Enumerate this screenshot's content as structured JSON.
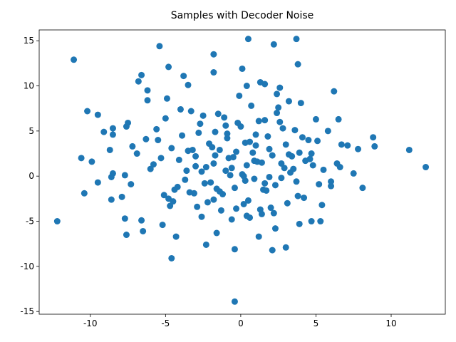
{
  "chart_data": {
    "type": "scatter",
    "title": "Samples with Decoder Noise",
    "color": "#1f77b4",
    "x": [
      -12.2,
      -11.1,
      0.5,
      3.7,
      2.2,
      -5.4,
      -1.8,
      3.8,
      -4.8,
      -1.8,
      0.1,
      12.3,
      11.2,
      8.9,
      8.8,
      8.1,
      7.8,
      7.5,
      -0.4,
      -4.6,
      -0.4,
      2.1,
      3.0,
      -2.3,
      -4.3,
      -7.6,
      -6.5,
      -10.4,
      -10.6,
      -10.2,
      -9.5,
      -9.9,
      -9.5,
      -8.6,
      -7.9,
      6.2,
      6.5,
      5.0,
      -6.8,
      -6.6,
      -6.2,
      -3.8,
      -3.5,
      1.3,
      1.6,
      2.6,
      0.4,
      3.2,
      -4.5,
      -5.2,
      -6.6,
      -7.7,
      -1.6,
      1.2,
      2.3,
      3.9,
      4.7,
      5.3,
      5.4,
      6.0,
      6.0,
      6.6,
      6.4,
      7.1,
      6.7,
      5.8,
      -8.7,
      -9.1,
      -8.5,
      -8.5,
      -7.6,
      -7.5,
      -7.3,
      -8.5,
      -8.6,
      -7.7,
      -4.7,
      -7.2,
      -6.9,
      -6.3,
      -6.0,
      -5.6,
      -5.3,
      -5.0,
      -4.6,
      -4.2,
      -3.9,
      -3.6,
      -3.3,
      -3.0,
      -2.7,
      -2.4,
      -2.1,
      -1.8,
      -1.5,
      -1.2,
      -0.9,
      -0.6,
      -0.3,
      0.0,
      0.3,
      0.6,
      0.9,
      1.2,
      1.5,
      1.8,
      2.1,
      2.4,
      2.7,
      3.0,
      3.3,
      3.6,
      3.9,
      4.2,
      4.5,
      4.8,
      5.1,
      5.5,
      -4.1,
      -3.7,
      -3.2,
      -2.8,
      -2.3,
      -1.9,
      -1.4,
      -1.0,
      -0.5,
      0.1,
      0.5,
      1.0,
      1.4,
      1.9,
      2.3,
      2.8,
      3.2,
      3.7,
      4.1,
      4.6,
      -5.8,
      -5.1,
      -4.4,
      -3.5,
      -2.6,
      -1.7,
      -0.8,
      0.2,
      1.1,
      2.0,
      2.9,
      3.8,
      4.7,
      -3.0,
      -2.2,
      -1.3,
      -0.4,
      0.4,
      1.3,
      2.2,
      3.1,
      -2.0,
      -1.1,
      -0.2,
      0.7,
      1.6,
      2.5,
      -6.2,
      -5.5,
      -4.8,
      -4.0,
      -3.1,
      -2.5,
      -1.6,
      -0.7,
      0.3,
      0.9,
      1.7,
      2.6,
      3.4,
      4.3,
      5.2,
      -3.4,
      -2.9,
      -1.8,
      -0.9,
      0.2,
      1.0,
      1.9,
      2.7,
      3.5,
      -1.4,
      -0.6,
      0.6,
      1.4,
      -2.6,
      -0.1,
      2.4,
      -4.9,
      4.0,
      -1.0,
      0.8,
      -0.3,
      0.4,
      -1.7,
      1.6
    ],
    "values": [
      -5.0,
      12.9,
      15.2,
      15.2,
      14.6,
      14.4,
      13.5,
      12.4,
      12.1,
      11.5,
      11.9,
      1.0,
      2.9,
      3.3,
      4.3,
      -1.3,
      3.0,
      0.3,
      -13.9,
      -9.1,
      -8.1,
      -8.2,
      -7.9,
      -7.6,
      -6.7,
      -6.5,
      -6.1,
      -1.9,
      2.0,
      7.2,
      6.8,
      1.6,
      -0.7,
      -2.6,
      -2.3,
      9.4,
      6.3,
      6.3,
      10.5,
      11.2,
      9.5,
      11.1,
      10.1,
      10.4,
      10.2,
      9.8,
      10.0,
      8.3,
      -2.8,
      -5.4,
      -4.9,
      -4.7,
      -6.3,
      -6.7,
      -5.8,
      -5.3,
      -5.0,
      -5.0,
      -3.2,
      -1.1,
      -0.6,
      1.0,
      1.4,
      3.4,
      3.5,
      5.0,
      2.9,
      4.9,
      5.3,
      4.6,
      5.5,
      5.9,
      -0.9,
      0.3,
      -0.1,
      0.1,
      -3.3,
      3.3,
      2.5,
      4.1,
      0.8,
      5.2,
      2.0,
      6.4,
      3.1,
      -1.2,
      4.5,
      0.6,
      7.2,
      2.2,
      5.8,
      -0.8,
      3.6,
      1.4,
      6.9,
      -2.0,
      4.2,
      0.9,
      2.7,
      5.5,
      -0.5,
      3.8,
      1.7,
      6.1,
      -1.5,
      4.4,
      2.3,
      7.0,
      -0.2,
      3.5,
      0.4,
      5.1,
      2.6,
      -2.4,
      4.0,
      1.2,
      3.9,
      0.7,
      1.8,
      -0.4,
      2.9,
      4.8,
      1.0,
      3.2,
      -1.7,
      5.6,
      2.1,
      0.2,
      -2.7,
      4.6,
      1.5,
      3.0,
      -1.0,
      5.3,
      2.4,
      -0.6,
      4.3,
      1.9,
      1.3,
      -2.1,
      -1.5,
      2.8,
      0.5,
      4.9,
      2.0,
      -3.1,
      1.6,
      -3.5,
      0.9,
      -2.2,
      2.5,
      1.1,
      -2.9,
      -3.8,
      -1.3,
      -4.4,
      -3.7,
      -4.1,
      -3.0,
      -0.7,
      6.5,
      5.9,
      7.8,
      6.2,
      7.6,
      8.4,
      4.0,
      -2.5,
      7.4,
      -1.9,
      6.7,
      -1.4,
      0.1,
      3.7,
      -0.3,
      -1.6,
      6.0,
      2.2,
      1.7,
      -0.9,
      -1.8,
      -3.4,
      -2.6,
      4.7,
      0.0,
      3.4,
      -0.1,
      1.4,
      0.8,
      2.9,
      -4.8,
      -4.6,
      -4.2,
      -4.5,
      8.9,
      9.1,
      8.6,
      8.1,
      0.6,
      2.6,
      -3.6,
      1.2,
      2.3,
      -0.8
    ],
    "xlim": [
      -13.4,
      13.6
    ],
    "ylim": [
      -15.3,
      16.2
    ],
    "xticks": [
      -10,
      -5,
      0,
      5,
      10
    ],
    "yticks": [
      -15,
      -10,
      -5,
      0,
      5,
      10,
      15
    ]
  }
}
